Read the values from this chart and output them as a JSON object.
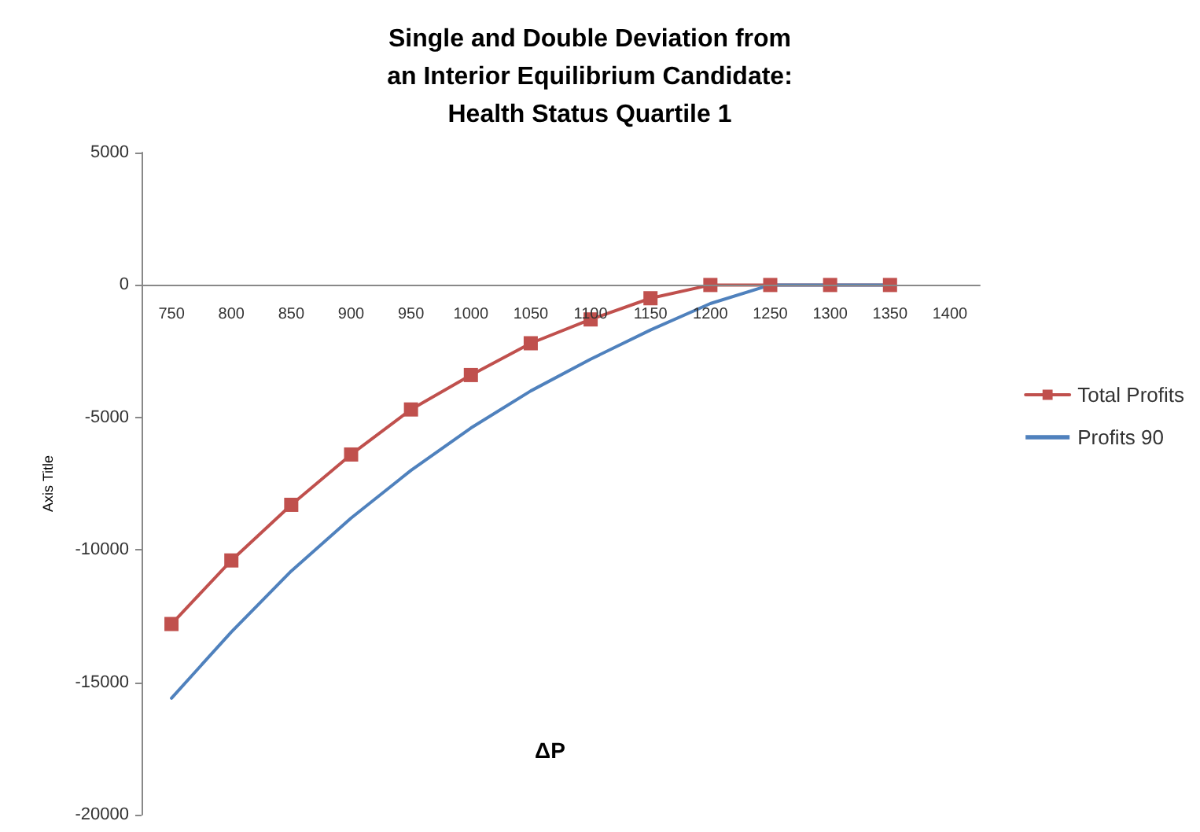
{
  "chart_data": {
    "type": "line",
    "title": "Single and Double Deviation from\nan Interior Equilibrium Candidate:\nHealth Status Quartile 1",
    "annotations": [
      "ΔP"
    ],
    "ylabel": "Axis Title",
    "categories": [
      "750",
      "800",
      "850",
      "900",
      "950",
      "1000",
      "1050",
      "1100",
      "1150",
      "1200",
      "1250",
      "1300",
      "1350",
      "1400"
    ],
    "series": [
      {
        "name": "Total Profits",
        "color": "#c0504d",
        "marker": "square",
        "values": [
          -12800,
          -10400,
          -8300,
          -6400,
          -4700,
          -3400,
          -2200,
          -1300,
          -500,
          0,
          0,
          0,
          0,
          null
        ]
      },
      {
        "name": "Profits 90",
        "color": "#4f81bd",
        "marker": "none",
        "values": [
          -15600,
          -13100,
          -10800,
          -8800,
          -7000,
          -5400,
          -4000,
          -2800,
          -1700,
          -700,
          0,
          0,
          0,
          null
        ]
      }
    ],
    "ylim": [
      -20000,
      5000
    ],
    "yticks": [
      -20000,
      -15000,
      -10000,
      -5000,
      0,
      5000
    ],
    "legend": "right",
    "line_style": "solid"
  }
}
